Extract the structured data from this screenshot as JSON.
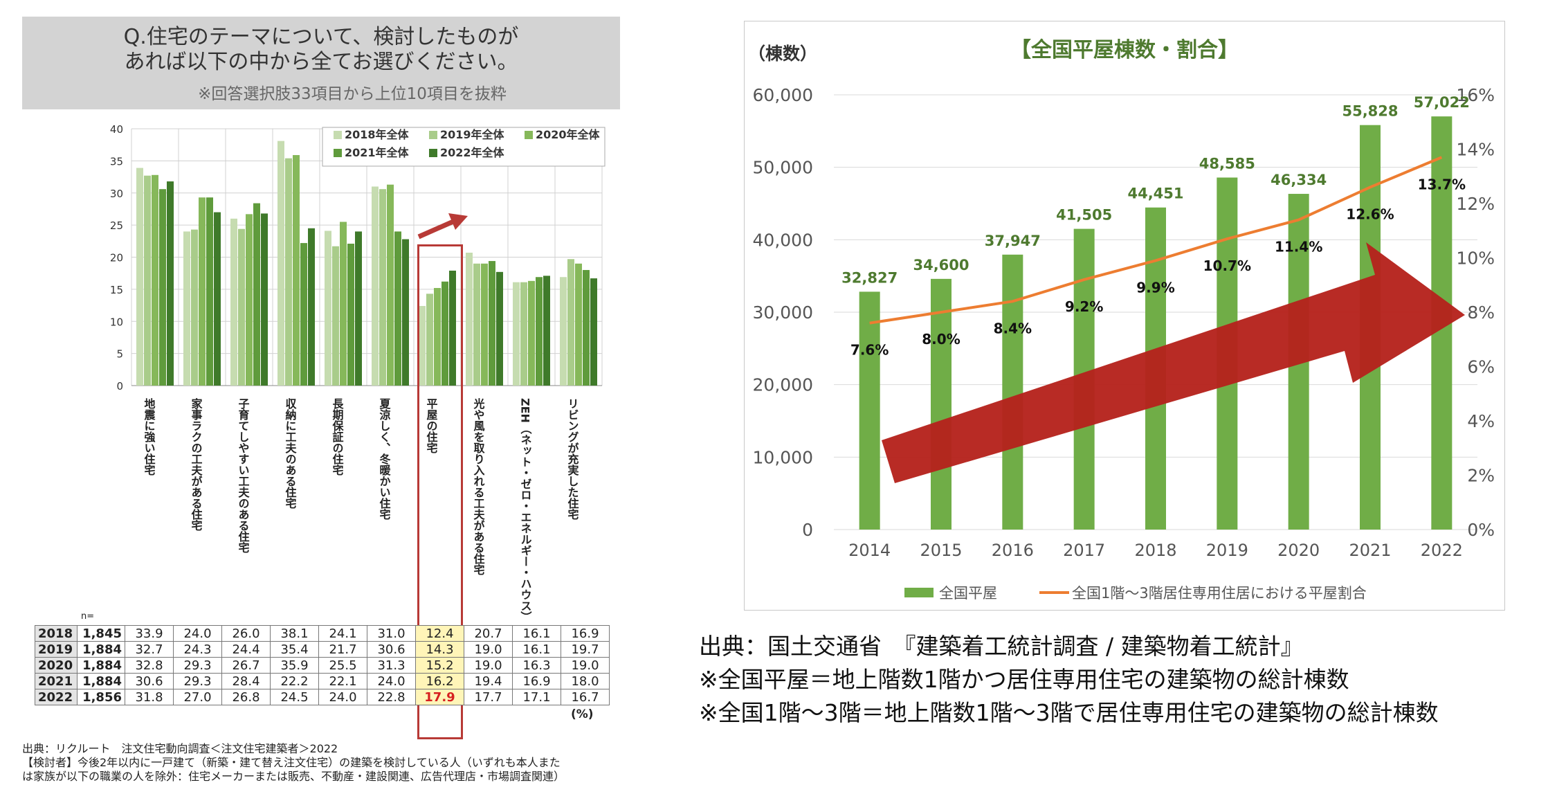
{
  "left": {
    "question": {
      "line1": "Q.住宅のテーマについて、検討したものが",
      "line2": "あれば以下の中から全てお選びください。",
      "note": "※回答選択肢33項目から上位10項目を抜粋"
    },
    "table_n_label": "n=",
    "table_unit": "(%)",
    "source_lines": [
      "出典：リクルート　注文住宅動向調査＜注文住宅建築者＞2022",
      "【検討者】今後2年以内に一戸建て（新築・建て替え注文住宅）の建築を検討している人（いずれも本人また",
      "は家族が以下の職業の人を除外：住宅メーカーまたは販売、不動産・建設関連、広告代理店・市場調査関連）"
    ]
  },
  "right": {
    "source_lines": [
      "出典：国土交通省　『建築着工統計調査 / 建築物着工統計』",
      "※全国平屋＝地上階数1階かつ居住専用住宅の建築物の総計棟数",
      "※全国1階～3階＝地上階数1階～3階で居住専用住宅の建築物の総計棟数"
    ]
  },
  "colors": {
    "survey_series": [
      "#c6dcb0",
      "#a9cc8a",
      "#86b85a",
      "#5f9b3c",
      "#3f7a2a"
    ],
    "bar_green": "#70ad47",
    "line_orange": "#ed7d31",
    "highlight_red": "#b83a36",
    "big_arrow": "#b5221c"
  },
  "chart_data": [
    {
      "type": "bar",
      "title": "",
      "ylim": [
        0,
        40
      ],
      "yticks": [
        "0",
        "5",
        "10",
        "15",
        "20",
        "25",
        "30",
        "35",
        "40"
      ],
      "grid": true,
      "legend_position": "top-right",
      "categories": [
        "地震に強い住宅",
        "家事ラクの工夫がある住宅",
        "子育てしやすい工夫のある住宅",
        "収納に工夫のある住宅",
        "長期保証の住宅",
        "夏涼しく、冬暖かい住宅",
        "平屋の住宅",
        "光や風を取り入れる工夫がある住宅",
        "ZEH（ネット・ゼロ・エネルギー・ハウス）",
        "リビングが充実した住宅"
      ],
      "series": [
        {
          "name": "2018年全体",
          "n": "1,845",
          "values": [
            33.9,
            24.0,
            26.0,
            38.1,
            24.1,
            31.0,
            12.4,
            20.7,
            16.1,
            16.9
          ]
        },
        {
          "name": "2019年全体",
          "n": "1,884",
          "values": [
            32.7,
            24.3,
            24.4,
            35.4,
            21.7,
            30.6,
            14.3,
            19.0,
            16.1,
            19.7
          ]
        },
        {
          "name": "2020年全体",
          "n": "1,884",
          "values": [
            32.8,
            29.3,
            26.7,
            35.9,
            25.5,
            31.3,
            15.2,
            19.0,
            16.3,
            19.0
          ]
        },
        {
          "name": "2021年全体",
          "n": "1,884",
          "values": [
            30.6,
            29.3,
            28.4,
            22.2,
            22.1,
            24.0,
            16.2,
            19.4,
            16.9,
            18.0
          ]
        },
        {
          "name": "2022年全体",
          "n": "1,856",
          "values": [
            31.8,
            27.0,
            26.8,
            24.5,
            24.0,
            22.8,
            17.9,
            17.7,
            17.1,
            16.7
          ]
        }
      ],
      "table_years": [
        "2018",
        "2019",
        "2020",
        "2021",
        "2022"
      ],
      "table_values": [
        [
          "33.9",
          "24.0",
          "26.0",
          "38.1",
          "24.1",
          "31.0",
          "12.4",
          "20.7",
          "16.1",
          "16.9"
        ],
        [
          "32.7",
          "24.3",
          "24.4",
          "35.4",
          "21.7",
          "30.6",
          "14.3",
          "19.0",
          "16.1",
          "19.7"
        ],
        [
          "32.8",
          "29.3",
          "26.7",
          "35.9",
          "25.5",
          "31.3",
          "15.2",
          "19.0",
          "16.3",
          "19.0"
        ],
        [
          "30.6",
          "29.3",
          "28.4",
          "22.2",
          "22.1",
          "24.0",
          "16.2",
          "19.4",
          "16.9",
          "18.0"
        ],
        [
          "31.8",
          "27.0",
          "26.8",
          "24.5",
          "24.0",
          "22.8",
          "17.9",
          "17.7",
          "17.1",
          "16.7"
        ]
      ],
      "highlight_category": "平屋の住宅"
    },
    {
      "type": "bar",
      "title": "【全国平屋棟数・割合】",
      "ylabel": "（棟数）",
      "ylim": [
        0,
        60000
      ],
      "yticks": [
        "0",
        "10,000",
        "20,000",
        "30,000",
        "40,000",
        "50,000",
        "60,000"
      ],
      "y2lim": [
        0,
        16
      ],
      "y2ticks": [
        "0%",
        "2%",
        "4%",
        "6%",
        "8%",
        "10%",
        "12%",
        "14%",
        "16%"
      ],
      "grid": true,
      "legend_position": "bottom",
      "categories": [
        "2014",
        "2015",
        "2016",
        "2017",
        "2018",
        "2019",
        "2020",
        "2021",
        "2022"
      ],
      "series": [
        {
          "name": "全国平屋",
          "type": "bar",
          "values": [
            32827,
            34600,
            37947,
            41505,
            44451,
            48585,
            46334,
            55828,
            57022
          ],
          "labels": [
            "32,827",
            "34,600",
            "37,947",
            "41,505",
            "44,451",
            "48,585",
            "46,334",
            "55,828",
            "57,022"
          ]
        },
        {
          "name": "全国1階～3階居住専用住居における平屋割合",
          "type": "line",
          "axis": "right",
          "values": [
            7.6,
            8.0,
            8.4,
            9.2,
            9.9,
            10.7,
            11.4,
            12.6,
            13.7
          ],
          "labels": [
            "7.6%",
            "8.0%",
            "8.4%",
            "9.2%",
            "9.9%",
            "10.7%",
            "11.4%",
            "12.6%",
            "13.7%"
          ]
        }
      ]
    }
  ]
}
